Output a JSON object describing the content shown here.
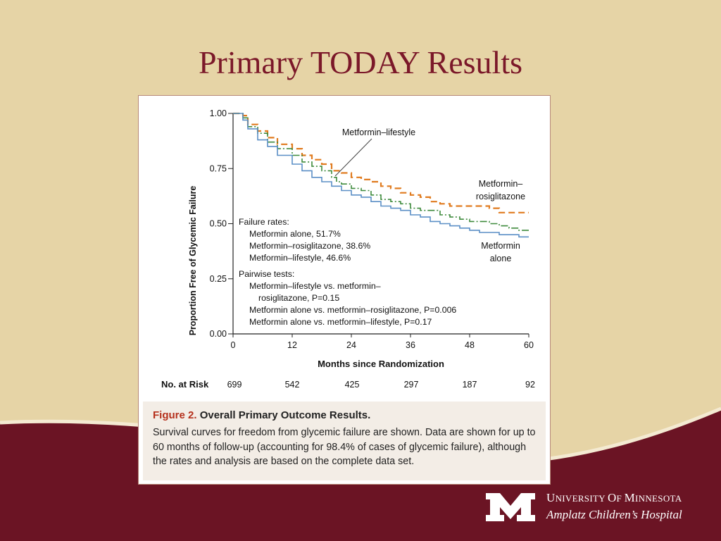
{
  "slide": {
    "title": "Primary TODAY Results",
    "colors": {
      "background": "#e6d4a6",
      "maroon": "#6b1424",
      "title": "#7b1829"
    }
  },
  "chart_data": {
    "type": "line",
    "step": true,
    "xlabel": "Months since Randomization",
    "ylabel": "Proportion Free of Glycemic Failure",
    "xlim": [
      0,
      60
    ],
    "ylim": [
      0,
      1
    ],
    "xticks": [
      "0",
      "12",
      "24",
      "36",
      "48",
      "60"
    ],
    "yticks": [
      "0.00",
      "0.25",
      "0.50",
      "0.75",
      "1.00"
    ],
    "series": [
      {
        "name": "Metformin–rosiglitazone",
        "label_lines": [
          "Metformin–",
          "rosiglitazone"
        ],
        "color": "#e07b1f",
        "dash": "dashed",
        "points": [
          [
            0,
            1.0
          ],
          [
            2,
            0.99
          ],
          [
            3,
            0.95
          ],
          [
            5,
            0.92
          ],
          [
            7,
            0.89
          ],
          [
            9,
            0.86
          ],
          [
            12,
            0.84
          ],
          [
            14,
            0.81
          ],
          [
            16,
            0.79
          ],
          [
            18,
            0.77
          ],
          [
            20,
            0.74
          ],
          [
            22,
            0.73
          ],
          [
            24,
            0.71
          ],
          [
            26,
            0.7
          ],
          [
            28,
            0.69
          ],
          [
            30,
            0.67
          ],
          [
            32,
            0.66
          ],
          [
            34,
            0.64
          ],
          [
            36,
            0.63
          ],
          [
            38,
            0.62
          ],
          [
            40,
            0.6
          ],
          [
            42,
            0.59
          ],
          [
            44,
            0.58
          ],
          [
            46,
            0.58
          ],
          [
            48,
            0.58
          ],
          [
            50,
            0.58
          ],
          [
            52,
            0.57
          ],
          [
            54,
            0.55
          ],
          [
            57,
            0.55
          ],
          [
            60,
            0.55
          ]
        ]
      },
      {
        "name": "Metformin–lifestyle",
        "label_lines": [
          "Metformin–lifestyle"
        ],
        "color": "#3e8a3c",
        "dash": "dashdot",
        "points": [
          [
            0,
            1.0
          ],
          [
            2,
            0.98
          ],
          [
            3,
            0.94
          ],
          [
            5,
            0.91
          ],
          [
            7,
            0.87
          ],
          [
            9,
            0.84
          ],
          [
            12,
            0.81
          ],
          [
            14,
            0.78
          ],
          [
            16,
            0.76
          ],
          [
            18,
            0.74
          ],
          [
            20,
            0.71
          ],
          [
            21,
            0.69
          ],
          [
            22,
            0.68
          ],
          [
            24,
            0.66
          ],
          [
            26,
            0.65
          ],
          [
            28,
            0.63
          ],
          [
            30,
            0.61
          ],
          [
            32,
            0.6
          ],
          [
            34,
            0.59
          ],
          [
            36,
            0.57
          ],
          [
            38,
            0.56
          ],
          [
            40,
            0.56
          ],
          [
            42,
            0.54
          ],
          [
            44,
            0.53
          ],
          [
            46,
            0.52
          ],
          [
            48,
            0.51
          ],
          [
            50,
            0.51
          ],
          [
            52,
            0.5
          ],
          [
            54,
            0.49
          ],
          [
            56,
            0.48
          ],
          [
            58,
            0.47
          ],
          [
            60,
            0.47
          ]
        ]
      },
      {
        "name": "Metformin alone",
        "label_lines": [
          "Metformin",
          "alone"
        ],
        "color": "#5b8fc6",
        "dash": "solid",
        "points": [
          [
            0,
            1.0
          ],
          [
            2,
            0.97
          ],
          [
            3,
            0.93
          ],
          [
            5,
            0.88
          ],
          [
            7,
            0.85
          ],
          [
            9,
            0.81
          ],
          [
            12,
            0.77
          ],
          [
            14,
            0.74
          ],
          [
            16,
            0.71
          ],
          [
            18,
            0.69
          ],
          [
            20,
            0.67
          ],
          [
            22,
            0.65
          ],
          [
            24,
            0.63
          ],
          [
            26,
            0.62
          ],
          [
            28,
            0.6
          ],
          [
            30,
            0.58
          ],
          [
            32,
            0.57
          ],
          [
            34,
            0.56
          ],
          [
            36,
            0.54
          ],
          [
            38,
            0.53
          ],
          [
            40,
            0.51
          ],
          [
            42,
            0.5
          ],
          [
            44,
            0.49
          ],
          [
            46,
            0.48
          ],
          [
            48,
            0.47
          ],
          [
            50,
            0.46
          ],
          [
            52,
            0.46
          ],
          [
            54,
            0.45
          ],
          [
            56,
            0.45
          ],
          [
            58,
            0.44
          ],
          [
            60,
            0.44
          ]
        ]
      }
    ],
    "annotations": [
      "Failure rates:",
      "Metformin alone, 51.7%",
      "Metformin–rosiglitazone, 38.6%",
      "Metformin–lifestyle, 46.6%",
      "Pairwise tests:",
      "Metformin–lifestyle vs. metformin–",
      "rosiglitazone, P=0.15",
      "Metformin alone vs. metformin–rosiglitazone, P=0.006",
      "Metformin alone vs. metformin–lifestyle, P=0.17"
    ],
    "at_risk": {
      "label": "No. at Risk",
      "values": [
        "699",
        "542",
        "425",
        "297",
        "187",
        "92"
      ]
    }
  },
  "caption": {
    "figure_label": "Figure 2.",
    "figure_title": "Overall Primary Outcome Results.",
    "text": "Survival curves for freedom from glycemic failure are shown. Data are shown for up to 60 months of follow-up (accounting for 98.4% of cases of glycemic failure), although the rates and analysis are based on the complete data set."
  },
  "branding": {
    "logo_letter": "M",
    "university_name": "University of Minnesota",
    "hospital_name": "Amplatz Children’s Hospital"
  }
}
